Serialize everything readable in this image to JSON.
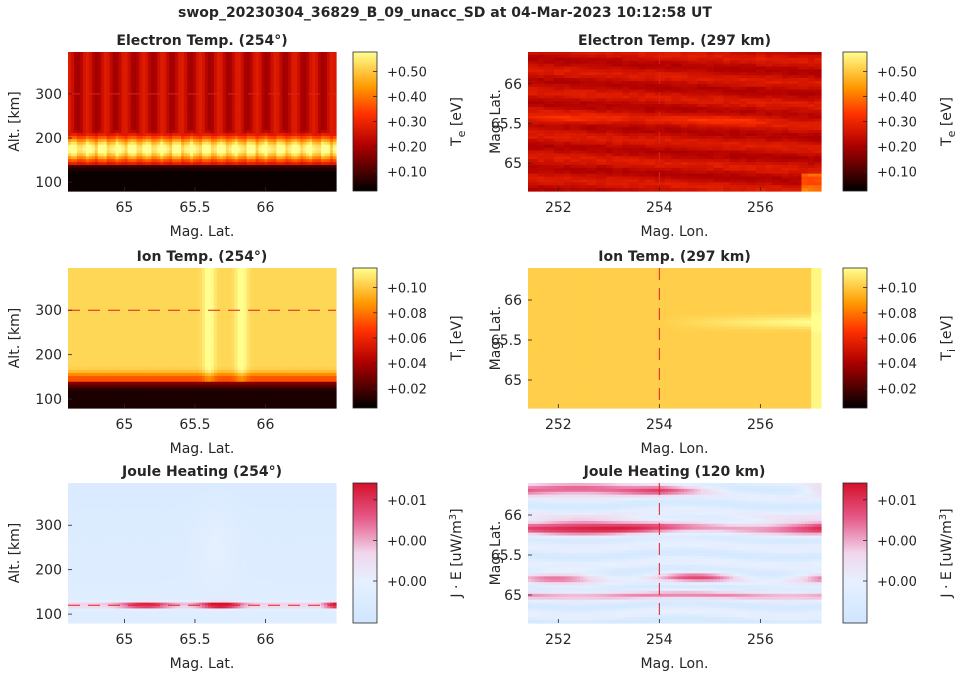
{
  "suptitle": "swop_20230304_36829_B_09_unacc_SD at 04-Mar-2023 10:12:58 UT",
  "chart_data": [
    {
      "type": "heatmap",
      "title": "Electron Temp. (254°)",
      "xlabel": "Mag. Lat.",
      "ylabel": "Alt. [km]",
      "xlim": [
        64.6,
        66.5
      ],
      "ylim": [
        80,
        395
      ],
      "xticks": [
        "65",
        "65.5",
        "66"
      ],
      "xtick_values": [
        65,
        65.5,
        66
      ],
      "yticks": [
        "100",
        "200",
        "300"
      ],
      "ytick_values": [
        100,
        200,
        300
      ],
      "colorbar_label": "T_e [eV]",
      "colorbar_ticks": [
        "+0.10",
        "+0.20",
        "+0.30",
        "+0.40",
        "+0.50"
      ],
      "colormap": "hot",
      "ref_line": {
        "orientation": "horizontal",
        "value": 300
      },
      "field": "electron_alt"
    },
    {
      "type": "heatmap",
      "title": "Electron Temp. (297 km)",
      "xlabel": "Mag. Lon.",
      "ylabel": "Mag. Lat.",
      "xlim": [
        251.4,
        257.2
      ],
      "ylim": [
        64.65,
        66.4
      ],
      "xticks": [
        "252",
        "254",
        "256"
      ],
      "xtick_values": [
        252,
        254,
        256
      ],
      "yticks": [
        "65",
        "65.5",
        "66"
      ],
      "ytick_values": [
        65,
        65.5,
        66
      ],
      "colorbar_label": "T_e [eV]",
      "colorbar_ticks": [
        "+0.10",
        "+0.20",
        "+0.30",
        "+0.40",
        "+0.50"
      ],
      "colormap": "hot",
      "ref_line": {
        "orientation": "vertical",
        "value": 254
      },
      "field": "electron_map"
    },
    {
      "type": "heatmap",
      "title": "Ion Temp. (254°)",
      "xlabel": "Mag. Lat.",
      "ylabel": "Alt. [km]",
      "xlim": [
        64.6,
        66.5
      ],
      "ylim": [
        80,
        395
      ],
      "xticks": [
        "65",
        "65.5",
        "66"
      ],
      "xtick_values": [
        65,
        65.5,
        66
      ],
      "yticks": [
        "100",
        "200",
        "300"
      ],
      "ytick_values": [
        100,
        200,
        300
      ],
      "colorbar_label": "T_i [eV]",
      "colorbar_ticks": [
        "+0.02",
        "+0.04",
        "+0.06",
        "+0.08",
        "+0.10"
      ],
      "colormap": "hot",
      "ref_line": {
        "orientation": "horizontal",
        "value": 300
      },
      "field": "ion_alt"
    },
    {
      "type": "heatmap",
      "title": "Ion Temp. (297 km)",
      "xlabel": "Mag. Lon.",
      "ylabel": "Mag. Lat.",
      "xlim": [
        251.4,
        257.2
      ],
      "ylim": [
        64.65,
        66.4
      ],
      "xticks": [
        "252",
        "254",
        "256"
      ],
      "xtick_values": [
        252,
        254,
        256
      ],
      "yticks": [
        "65",
        "65.5",
        "66"
      ],
      "ytick_values": [
        65,
        65.5,
        66
      ],
      "colorbar_label": "T_i [eV]",
      "colorbar_ticks": [
        "+0.02",
        "+0.04",
        "+0.06",
        "+0.08",
        "+0.10"
      ],
      "colormap": "hot",
      "ref_line": {
        "orientation": "vertical",
        "value": 254
      },
      "field": "ion_map"
    },
    {
      "type": "heatmap",
      "title": "Joule Heating (254°)",
      "xlabel": "Mag. Lat.",
      "ylabel": "Alt. [km]",
      "xlim": [
        64.6,
        66.5
      ],
      "ylim": [
        80,
        395
      ],
      "xticks": [
        "65",
        "65.5",
        "66"
      ],
      "xtick_values": [
        65,
        65.5,
        66
      ],
      "yticks": [
        "100",
        "200",
        "300"
      ],
      "ytick_values": [
        100,
        200,
        300
      ],
      "colorbar_label": "J · E [uW/m^3]",
      "colorbar_ticks": [
        "+0.00",
        "+0.00",
        "+0.01"
      ],
      "colormap": "diverging-blue-red",
      "ref_line": {
        "orientation": "horizontal",
        "value": 120
      },
      "field": "joule_alt"
    },
    {
      "type": "heatmap",
      "title": "Joule Heating (120 km)",
      "xlabel": "Mag. Lon.",
      "ylabel": "Mag. Lat.",
      "xlim": [
        251.4,
        257.2
      ],
      "ylim": [
        64.65,
        66.4
      ],
      "xticks": [
        "252",
        "254",
        "256"
      ],
      "xtick_values": [
        252,
        254,
        256
      ],
      "yticks": [
        "65",
        "65.5",
        "66"
      ],
      "ytick_values": [
        65,
        65.5,
        66
      ],
      "colorbar_label": "J · E [uW/m^3]",
      "colorbar_ticks": [
        "+0.00",
        "+0.00",
        "+0.01"
      ],
      "colormap": "diverging-blue-red",
      "ref_line": {
        "orientation": "vertical",
        "value": 254
      },
      "field": "joule_map"
    }
  ]
}
